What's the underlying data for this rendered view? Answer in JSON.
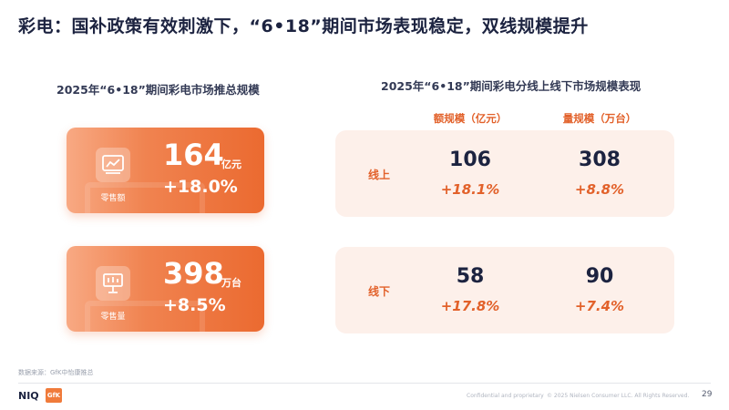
{
  "title": "彩电：国补政策有效刺激下，“6•18”期间市场表现稳定，双线规模提升",
  "left_section": {
    "title": "2025年“6•18”期间彩电市场推总规模",
    "cards": [
      {
        "icon": "chart-icon",
        "label": "零售额",
        "value": "164",
        "unit": "亿元",
        "change": "+18.0%"
      },
      {
        "icon": "presentation-icon",
        "label": "零售量",
        "value": "398",
        "unit": "万台",
        "change": "+8.5%"
      }
    ]
  },
  "right_section": {
    "title": "2025年“6•18”期间彩电分线上线下市场规模表现",
    "columns": [
      "额规模（亿元）",
      "量规模（万台）"
    ],
    "rows": [
      {
        "label": "线上",
        "values": [
          "106",
          "308"
        ],
        "changes": [
          "+18.1%",
          "+8.8%"
        ]
      },
      {
        "label": "线下",
        "values": [
          "58",
          "90"
        ],
        "changes": [
          "+17.8%",
          "+7.4%"
        ]
      }
    ]
  },
  "footer": {
    "source": "数据来源：GfK中怡康推总",
    "logo_niq": "NIQ",
    "logo_gfk": "GfK",
    "confidential": "Confidential and proprietary",
    "copyright": "© 2025 Nielsen Consumer LLC. All Rights Reserved.",
    "page": "29"
  },
  "colors": {
    "accent": "#e2612a",
    "card_gradient_start": "#f8a983",
    "card_gradient_end": "#eb6a30",
    "row_bg": "#fdf0ea"
  }
}
